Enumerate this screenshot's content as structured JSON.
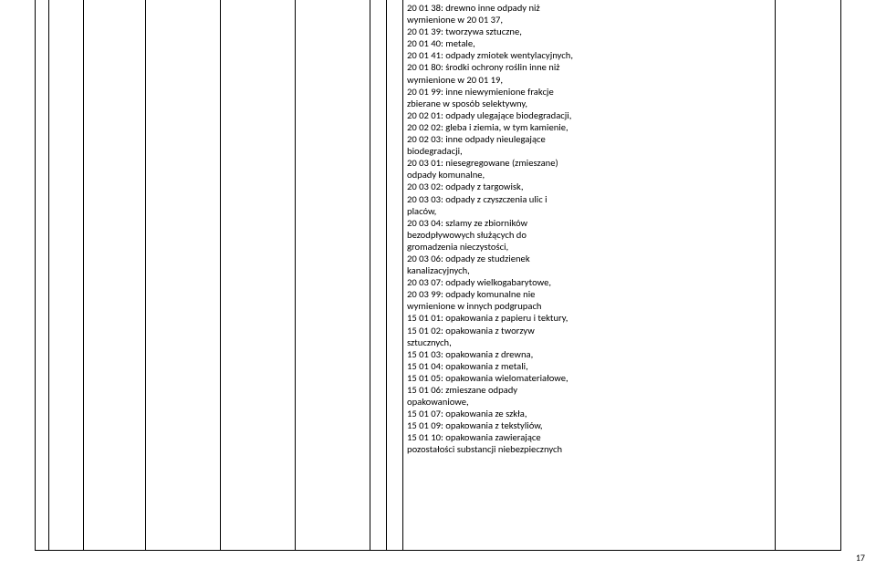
{
  "page_number": "17",
  "table": {
    "column_count": 10,
    "border_color": "#000000"
  },
  "lines": [
    "20 01 38: drewno inne odpady niż",
    "wymienione w 20 01 37,",
    "20 01 39: tworzywa sztuczne,",
    "20 01 40: metale,",
    "20 01 41: odpady zmiotek wentylacyjnych,",
    "20 01 80: środki ochrony roślin inne niż",
    "wymienione w 20 01 19,",
    "20 01 99: inne niewymienione frakcje",
    "zbierane w sposób selektywny,",
    "20 02 01: odpady ulegające biodegradacji,",
    "20 02 02: gleba i ziemia, w tym kamienie,",
    "20 02 03: inne odpady nieulegające",
    "biodegradacji,",
    "20 03 01: niesegregowane (zmieszane)",
    "odpady komunalne,",
    "20 03 02: odpady z targowisk,",
    "20 03 03: odpady z czyszczenia ulic i",
    "placów,",
    "20 03 04: szlamy ze zbiorników",
    "bezodpływowych służących do",
    "gromadzenia nieczystości,",
    "20 03 06: odpady ze studzienek",
    "kanalizacyjnych,",
    "20 03 07: odpady wielkogabarytowe,",
    "20 03 99: odpady komunalne nie",
    "wymienione w innych podgrupach",
    "15 01 01: opakowania z papieru i tektury,",
    "15 01 02: opakowania z tworzyw",
    "sztucznych,",
    "15 01 03: opakowania z drewna,",
    "15 01 04: opakowania z metali,",
    "15 01 05: opakowania wielomateriałowe,",
    "15 01 06: zmieszane odpady",
    "opakowaniowe,",
    "15 01 07: opakowania ze szkła,",
    "15 01 09: opakowania z tekstyliów,",
    "15 01 10: opakowania zawierające",
    "pozostałości substancji niebezpiecznych"
  ]
}
